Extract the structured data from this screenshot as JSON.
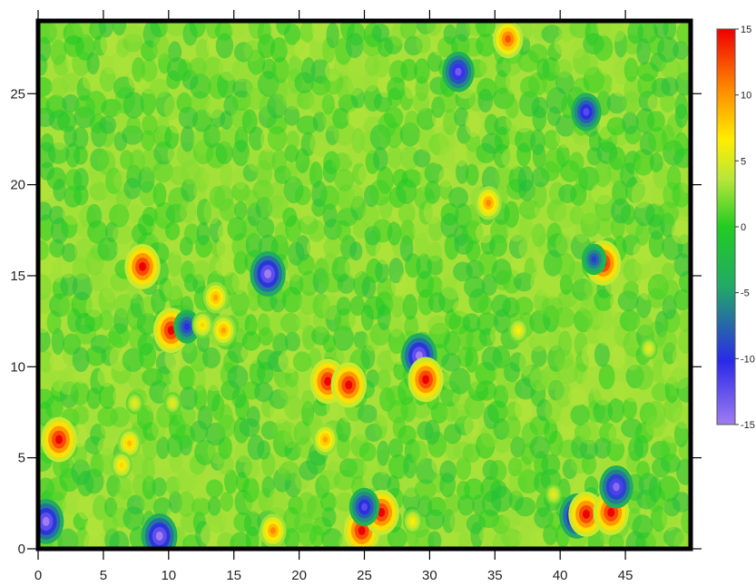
{
  "chart_data": {
    "type": "heatmap",
    "title": "",
    "xlabel": "",
    "ylabel": "",
    "xlim": [
      0,
      50
    ],
    "ylim": [
      0,
      29
    ],
    "x_ticks": [
      0,
      5,
      10,
      15,
      20,
      25,
      30,
      35,
      40,
      45
    ],
    "y_ticks": [
      0,
      5,
      10,
      15,
      20,
      25
    ],
    "grid": false,
    "colorbar": {
      "min": -15,
      "max": 15,
      "ticks": [
        15,
        10,
        5,
        0,
        -5,
        -10,
        -15
      ],
      "placement": "right",
      "colors": [
        "#a07cf0",
        "#2a2ae8",
        "#22cc22",
        "#b8e63a",
        "#ffee00",
        "#ff8800",
        "#ee0000"
      ]
    },
    "background_value": 0,
    "anomalies": [
      {
        "x": 1.6,
        "y": 6.0,
        "value": 15
      },
      {
        "x": 0.6,
        "y": 1.5,
        "value": -15
      },
      {
        "x": 8.0,
        "y": 15.5,
        "value": 15
      },
      {
        "x": 10.2,
        "y": 12.0,
        "value": 15
      },
      {
        "x": 11.4,
        "y": 12.2,
        "value": -10
      },
      {
        "x": 13.6,
        "y": 13.8,
        "value": 9
      },
      {
        "x": 12.6,
        "y": 12.3,
        "value": 7
      },
      {
        "x": 14.2,
        "y": 12.0,
        "value": 9
      },
      {
        "x": 17.6,
        "y": 15.1,
        "value": -15
      },
      {
        "x": 7.0,
        "y": 5.8,
        "value": 8
      },
      {
        "x": 6.4,
        "y": 4.6,
        "value": 7
      },
      {
        "x": 7.4,
        "y": 8.0,
        "value": 5
      },
      {
        "x": 10.3,
        "y": 8.0,
        "value": 5
      },
      {
        "x": 9.3,
        "y": 0.7,
        "value": -15
      },
      {
        "x": 18.0,
        "y": 1.0,
        "value": 10
      },
      {
        "x": 22.2,
        "y": 9.2,
        "value": 15
      },
      {
        "x": 23.8,
        "y": 9.0,
        "value": 15
      },
      {
        "x": 22.0,
        "y": 6.0,
        "value": 9
      },
      {
        "x": 29.2,
        "y": 10.6,
        "value": -15
      },
      {
        "x": 29.7,
        "y": 9.3,
        "value": 15
      },
      {
        "x": 24.8,
        "y": 1.0,
        "value": 15
      },
      {
        "x": 26.3,
        "y": 2.0,
        "value": 15
      },
      {
        "x": 25.0,
        "y": 2.3,
        "value": -12
      },
      {
        "x": 28.7,
        "y": 1.5,
        "value": 6
      },
      {
        "x": 32.2,
        "y": 26.2,
        "value": -13
      },
      {
        "x": 34.5,
        "y": 19.0,
        "value": 10
      },
      {
        "x": 36.0,
        "y": 28.0,
        "value": 12
      },
      {
        "x": 36.8,
        "y": 12.0,
        "value": 6
      },
      {
        "x": 42.0,
        "y": 24.0,
        "value": -12
      },
      {
        "x": 43.3,
        "y": 15.7,
        "value": 15
      },
      {
        "x": 42.6,
        "y": 15.9,
        "value": -9
      },
      {
        "x": 41.3,
        "y": 1.8,
        "value": -15
      },
      {
        "x": 42.0,
        "y": 1.9,
        "value": 15
      },
      {
        "x": 43.9,
        "y": 2.0,
        "value": 15
      },
      {
        "x": 44.3,
        "y": 3.4,
        "value": -14
      },
      {
        "x": 39.5,
        "y": 3.0,
        "value": 5
      },
      {
        "x": 46.8,
        "y": 11.0,
        "value": 5
      }
    ]
  }
}
